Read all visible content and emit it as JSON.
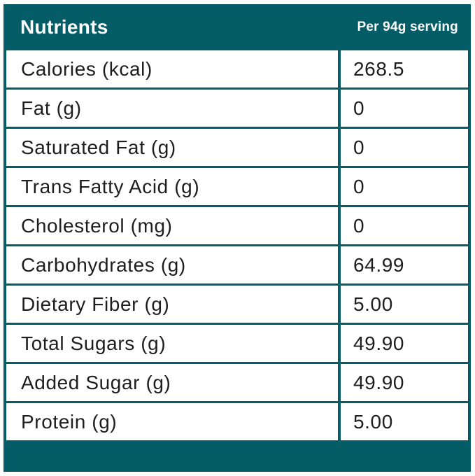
{
  "colors": {
    "teal": "#045c66",
    "row_background": "#ffffff",
    "header_text": "#ffffff",
    "body_text": "#1e1e1e"
  },
  "table": {
    "header": {
      "title": "Nutrients",
      "serving": "Per 94g serving"
    },
    "rows": [
      {
        "label": "Calories (kcal)",
        "value": "268.5"
      },
      {
        "label": "Fat (g)",
        "value": "0"
      },
      {
        "label": "Saturated Fat (g)",
        "value": "0"
      },
      {
        "label": "Trans Fatty Acid (g)",
        "value": "0"
      },
      {
        "label": "Cholesterol (mg)",
        "value": "0"
      },
      {
        "label": "Carbohydrates (g)",
        "value": "64.99"
      },
      {
        "label": "Dietary Fiber (g)",
        "value": "5.00"
      },
      {
        "label": "Total Sugars (g)",
        "value": "49.90"
      },
      {
        "label": "Added Sugar (g)",
        "value": "49.90"
      },
      {
        "label": "Protein (g)",
        "value": "5.00"
      }
    ]
  }
}
